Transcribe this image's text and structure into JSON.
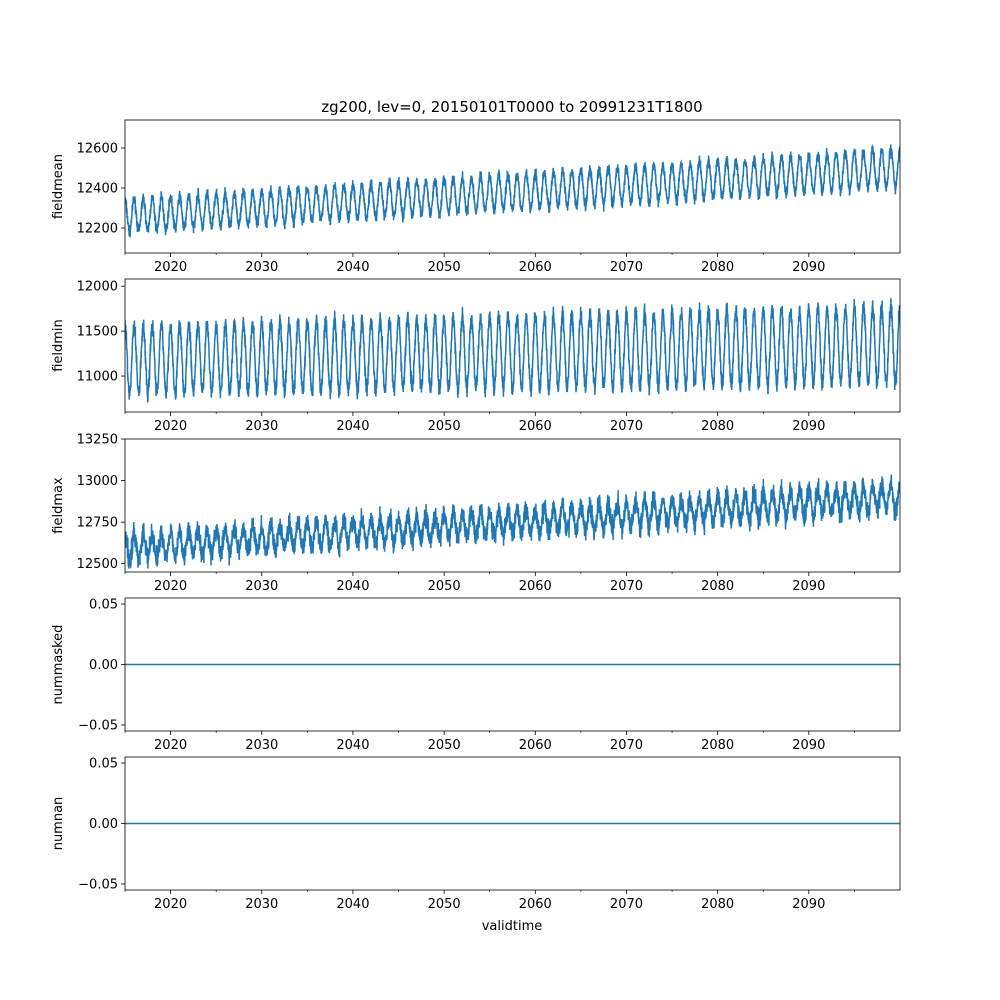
{
  "chart_data": {
    "type": "line",
    "title": "zg200, lev=0, 20150101T0000 to 20991231T1800",
    "xlabel": "validtime",
    "x_range": [
      2015.0,
      2100.0
    ],
    "x_ticks": [
      2020,
      2030,
      2040,
      2050,
      2060,
      2070,
      2080,
      2090
    ],
    "x_tick_labels": [
      "2020",
      "2030",
      "2040",
      "2050",
      "2060",
      "2070",
      "2080",
      "2090"
    ],
    "series_color": "#1f77b4",
    "panels": [
      {
        "ylabel": "fieldmean",
        "ylim": [
          12075,
          12740
        ],
        "y_ticks": [
          12200,
          12400,
          12600
        ],
        "y_tick_labels": [
          "12200",
          "12400",
          "12600"
        ],
        "trend": [
          12260,
          12500
        ],
        "seasonal_amplitude": [
          80,
          95
        ],
        "noise": 25,
        "baseline_at_zero": false
      },
      {
        "ylabel": "fieldmin",
        "ylim": [
          10600,
          12080
        ],
        "y_ticks": [
          11000,
          11500,
          12000
        ],
        "y_tick_labels": [
          "11000",
          "11500",
          "12000"
        ],
        "trend": [
          11180,
          11350
        ],
        "seasonal_amplitude": [
          370,
          430
        ],
        "noise": 80,
        "baseline_at_zero": false
      },
      {
        "ylabel": "fieldmax",
        "ylim": [
          12450,
          13250
        ],
        "y_ticks": [
          12500,
          12750,
          13000,
          13250
        ],
        "y_tick_labels": [
          "12500",
          "12750",
          "13000",
          "13250"
        ],
        "trend": [
          12600,
          12900
        ],
        "seasonal_amplitude": [
          70,
          80
        ],
        "noise": 55,
        "baseline_at_zero": false
      },
      {
        "ylabel": "nummasked",
        "ylim": [
          -0.055,
          0.055
        ],
        "y_ticks": [
          -0.05,
          0.0,
          0.05
        ],
        "y_tick_labels": [
          "−0.05",
          "0.00",
          "0.05"
        ],
        "values_constant": 0.0,
        "baseline_at_zero": true
      },
      {
        "ylabel": "numnan",
        "ylim": [
          -0.055,
          0.055
        ],
        "y_ticks": [
          -0.05,
          0.0,
          0.05
        ],
        "y_tick_labels": [
          "−0.05",
          "0.00",
          "0.05"
        ],
        "values_constant": 0.0,
        "baseline_at_zero": true
      }
    ]
  }
}
